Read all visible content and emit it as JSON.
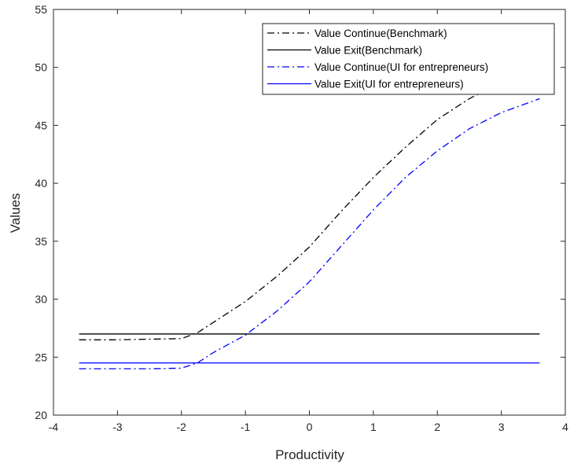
{
  "chart_data": {
    "type": "line",
    "title": "",
    "xlabel": "Productivity",
    "ylabel": "Values",
    "xlim": [
      -4,
      4
    ],
    "ylim": [
      20,
      55
    ],
    "xticks": [
      -4,
      -3,
      -2,
      -1,
      0,
      1,
      2,
      3,
      4
    ],
    "yticks": [
      20,
      25,
      30,
      35,
      40,
      45,
      50,
      55
    ],
    "grid": false,
    "legend_position": "top-right",
    "series": [
      {
        "name": "Value Continue(Benchmark)",
        "color": "#000000",
        "style": "dashdot",
        "x": [
          -3.6,
          -3.0,
          -2.5,
          -2.0,
          -1.75,
          -1.5,
          -1.0,
          -0.5,
          0.0,
          0.5,
          1.0,
          1.5,
          2.0,
          2.5,
          3.0,
          3.6
        ],
        "y": [
          26.5,
          26.5,
          26.55,
          26.6,
          27.1,
          28.0,
          29.8,
          32.0,
          34.5,
          37.6,
          40.5,
          43.1,
          45.5,
          47.3,
          48.7,
          49.5
        ]
      },
      {
        "name": "Value Exit(Benchmark)",
        "color": "#000000",
        "style": "solid",
        "x": [
          -3.6,
          3.6
        ],
        "y": [
          27.0,
          27.0
        ]
      },
      {
        "name": "Value Continue(UI for entrepreneurs)",
        "color": "#0000ff",
        "style": "dashdot",
        "x": [
          -3.6,
          -3.0,
          -2.5,
          -2.0,
          -1.75,
          -1.5,
          -1.0,
          -0.5,
          0.0,
          0.5,
          1.0,
          1.5,
          2.0,
          2.5,
          3.0,
          3.6
        ],
        "y": [
          24.0,
          24.0,
          24.0,
          24.05,
          24.5,
          25.4,
          26.9,
          29.0,
          31.5,
          34.6,
          37.7,
          40.5,
          42.8,
          44.7,
          46.1,
          47.3
        ]
      },
      {
        "name": "Value Exit(UI for entrepreneurs)",
        "color": "#0000ff",
        "style": "solid",
        "x": [
          -3.6,
          3.6
        ],
        "y": [
          24.5,
          24.5
        ]
      }
    ]
  }
}
